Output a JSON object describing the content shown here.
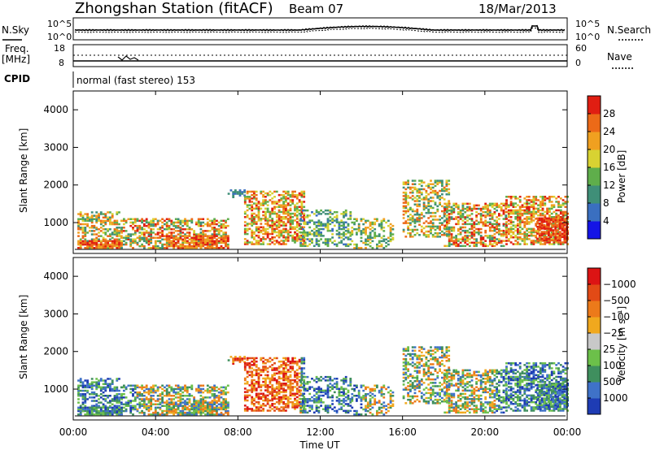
{
  "header": {
    "title": "Zhongshan Station (fitACF)",
    "beam": "Beam 07",
    "date": "18/Mar/2013"
  },
  "noise_panel": {
    "left_label": "N.Sky",
    "right_label": "N.Search",
    "left_ticks": [
      "10^5",
      "10^0"
    ],
    "right_ticks": [
      "10^5",
      "10^0"
    ]
  },
  "freq_panel": {
    "left_label": "Freq.",
    "left_unit": "[MHz]",
    "left_ticks": [
      "18",
      "8"
    ],
    "right_label": "Nave",
    "right_ticks": [
      "60",
      "0"
    ]
  },
  "cpid_label": "CPID",
  "cpid_value": "normal (fast stereo) 153",
  "x_axis": {
    "label": "Time UT",
    "ticks": [
      "00:00",
      "04:00",
      "08:00",
      "12:00",
      "16:00",
      "20:00",
      "00:00"
    ]
  },
  "chart_data": [
    {
      "type": "heatmap",
      "title": "",
      "xlabel": "Time UT",
      "ylabel": "Slant Range [km]",
      "xlim": [
        0,
        24
      ],
      "ylim": [
        180,
        4500
      ],
      "y_ticks": [
        1000,
        2000,
        3000,
        4000
      ],
      "colorbar": {
        "label": "Power [dB]",
        "ticks": [
          "4",
          "8",
          "12",
          "16",
          "20",
          "24",
          "28"
        ],
        "colors": [
          "#1414e6",
          "#3a6fc0",
          "#3f8f78",
          "#5fae4b",
          "#d8d232",
          "#f0a020",
          "#ec6a18",
          "#e01e12"
        ]
      }
    },
    {
      "type": "heatmap",
      "title": "",
      "xlabel": "Time UT",
      "ylabel": "Slant Range [km]",
      "xlim": [
        0,
        24
      ],
      "ylim": [
        180,
        4500
      ],
      "y_ticks": [
        1000,
        2000,
        3000,
        4000
      ],
      "colorbar": {
        "label": "Velocity [m s⁻¹]",
        "ticks": [
          "1000",
          "500",
          "100",
          "25",
          "−25",
          "−100",
          "−500",
          "−1000"
        ],
        "colors": [
          "#1e3cb4",
          "#3f72c8",
          "#3f8f5e",
          "#6cc04a",
          "#c8c8c8",
          "#f0a81e",
          "#ec7a1a",
          "#e24a16",
          "#dc1414"
        ]
      }
    }
  ]
}
